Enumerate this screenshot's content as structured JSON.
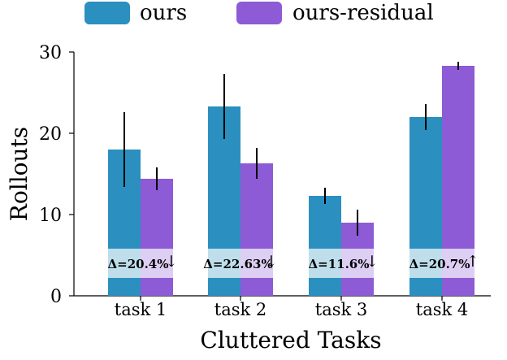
{
  "chart_data": {
    "type": "bar",
    "title": "",
    "xlabel": "Cluttered Tasks",
    "ylabel": "Rollouts",
    "categories": [
      "task 1",
      "task 2",
      "task 3",
      "task 4"
    ],
    "series": [
      {
        "name": "ours",
        "color": "#2b8fbf",
        "values": [
          18.0,
          23.3,
          12.3,
          22.0
        ],
        "errors": [
          4.6,
          4.0,
          1.0,
          1.6
        ]
      },
      {
        "name": "ours-residual",
        "color": "#8c5bd5",
        "values": [
          14.4,
          16.3,
          9.0,
          28.3
        ],
        "errors": [
          1.4,
          1.9,
          1.6,
          0.5
        ]
      }
    ],
    "ylim": [
      0,
      30
    ],
    "yticks": [
      0,
      10,
      20,
      30
    ],
    "ytick_labels": [
      "0",
      "10",
      "20",
      "30"
    ],
    "legend_position": "top",
    "annotations": [
      {
        "label": "Δ=20.4%",
        "arrow": "↓"
      },
      {
        "label": "Δ=22.63%",
        "arrow": "↓"
      },
      {
        "label": "Δ=11.6%",
        "arrow": "↓"
      },
      {
        "label": "Δ=20.7%",
        "arrow": "↑"
      }
    ],
    "annotation_value": 4.0,
    "grid": false
  }
}
